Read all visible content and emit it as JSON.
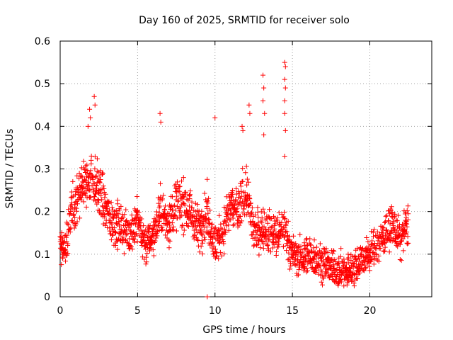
{
  "chart_data": {
    "type": "scatter",
    "title": "Day 160 of 2025, SRMTID for receiver solo",
    "xlabel": "GPS time / hours",
    "ylabel": "SRMTID / TECUs",
    "xlim": [
      0,
      24
    ],
    "ylim": [
      0,
      0.6
    ],
    "xticks": [
      0,
      5,
      10,
      15,
      20
    ],
    "xtick_labels": [
      "0",
      "5",
      "10",
      "15",
      "20"
    ],
    "yticks": [
      0,
      0.1,
      0.2,
      0.3,
      0.4,
      0.5,
      0.6
    ],
    "ytick_labels": [
      "0",
      "0.1",
      "0.2",
      "0.3",
      "0.4",
      "0.5",
      "0.6"
    ],
    "grid": true,
    "marker": "+",
    "color": "#ff0000",
    "trend": {
      "x": [
        0,
        0.3,
        0.6,
        1.0,
        1.5,
        2.0,
        2.5,
        3.0,
        3.5,
        4.0,
        4.5,
        5.0,
        5.5,
        6.0,
        6.5,
        7.0,
        7.5,
        8.0,
        8.5,
        9.0,
        9.5,
        10.0,
        10.5,
        11.0,
        11.5,
        12.0,
        12.5,
        13.0,
        13.5,
        14.0,
        14.5,
        15.0,
        15.5,
        16.0,
        16.5,
        17.0,
        17.5,
        18.0,
        18.5,
        19.0,
        19.5,
        20.0,
        20.5,
        21.0,
        21.5,
        22.0,
        22.5
      ],
      "y": [
        0.12,
        0.1,
        0.17,
        0.23,
        0.26,
        0.28,
        0.25,
        0.2,
        0.17,
        0.16,
        0.15,
        0.18,
        0.12,
        0.15,
        0.2,
        0.17,
        0.22,
        0.22,
        0.19,
        0.16,
        0.2,
        0.12,
        0.15,
        0.21,
        0.2,
        0.25,
        0.15,
        0.16,
        0.15,
        0.14,
        0.16,
        0.1,
        0.09,
        0.1,
        0.09,
        0.08,
        0.07,
        0.06,
        0.06,
        0.07,
        0.09,
        0.1,
        0.12,
        0.15,
        0.17,
        0.13,
        0.18
      ]
    },
    "spread": 0.045,
    "points": [
      {
        "x": 1.9,
        "y": 0.44
      },
      {
        "x": 1.95,
        "y": 0.42
      },
      {
        "x": 2.2,
        "y": 0.47
      },
      {
        "x": 2.25,
        "y": 0.45
      },
      {
        "x": 1.8,
        "y": 0.4
      },
      {
        "x": 6.45,
        "y": 0.43
      },
      {
        "x": 6.5,
        "y": 0.41
      },
      {
        "x": 10.0,
        "y": 0.42
      },
      {
        "x": 11.75,
        "y": 0.4
      },
      {
        "x": 11.8,
        "y": 0.39
      },
      {
        "x": 12.2,
        "y": 0.45
      },
      {
        "x": 12.25,
        "y": 0.43
      },
      {
        "x": 13.1,
        "y": 0.52
      },
      {
        "x": 13.15,
        "y": 0.49
      },
      {
        "x": 13.1,
        "y": 0.46
      },
      {
        "x": 13.2,
        "y": 0.43
      },
      {
        "x": 13.15,
        "y": 0.38
      },
      {
        "x": 14.5,
        "y": 0.55
      },
      {
        "x": 14.55,
        "y": 0.54
      },
      {
        "x": 14.5,
        "y": 0.51
      },
      {
        "x": 14.55,
        "y": 0.49
      },
      {
        "x": 14.5,
        "y": 0.46
      },
      {
        "x": 14.5,
        "y": 0.43
      },
      {
        "x": 14.55,
        "y": 0.39
      },
      {
        "x": 14.5,
        "y": 0.33
      },
      {
        "x": 9.5,
        "y": 0.0
      }
    ]
  }
}
